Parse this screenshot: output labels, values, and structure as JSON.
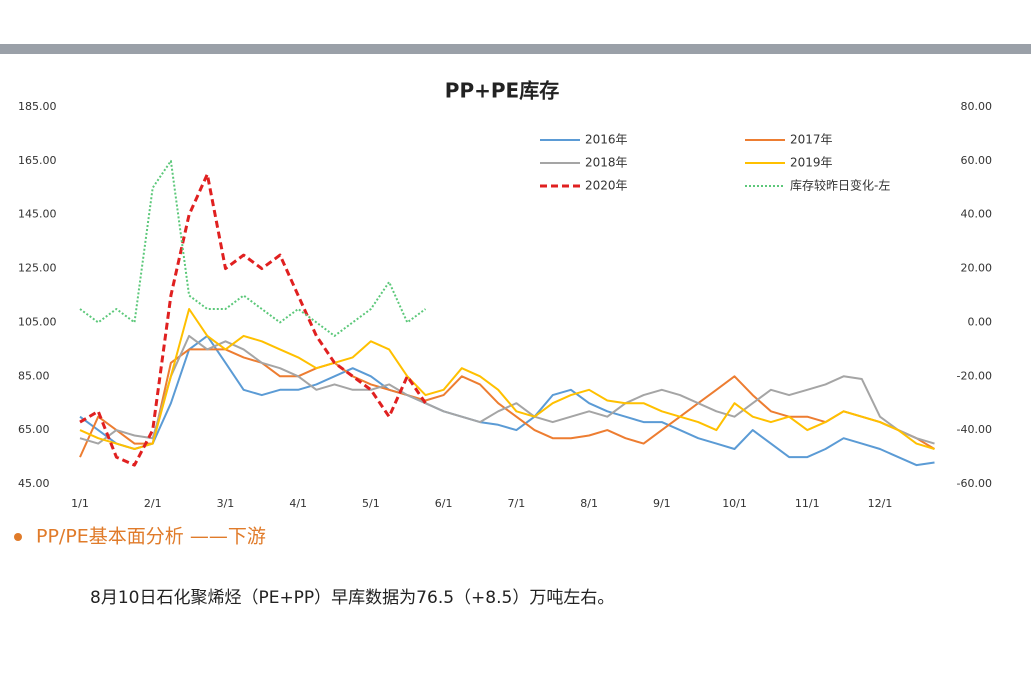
{
  "chart_data": {
    "type": "line",
    "title": "PP+PE库存",
    "categories": [
      "1/1",
      null,
      null,
      null,
      "2/1",
      null,
      null,
      null,
      "3/1",
      null,
      null,
      null,
      "4/1",
      null,
      null,
      null,
      "5/1",
      null,
      null,
      null,
      "6/1",
      null,
      null,
      null,
      "7/1",
      null,
      null,
      null,
      "8/1",
      null,
      null,
      null,
      "9/1",
      null,
      null,
      null,
      "10/1",
      null,
      null,
      null,
      "11/1",
      null,
      null,
      null,
      "12/1",
      null,
      null,
      null
    ],
    "ylim": [
      45,
      185
    ],
    "yticks": [
      {
        "value": 45,
        "label": "45.00"
      },
      {
        "value": 65,
        "label": "65.00"
      },
      {
        "value": 85,
        "label": "85.00"
      },
      {
        "value": 105,
        "label": "105.00"
      },
      {
        "value": 125,
        "label": "125.00"
      },
      {
        "value": 145,
        "label": "145.00"
      },
      {
        "value": 165,
        "label": "165.00"
      },
      {
        "value": 185,
        "label": "185.00"
      }
    ],
    "y2lim": [
      -60,
      80
    ],
    "y2ticks": [
      {
        "value": -60,
        "label": "-60.00"
      },
      {
        "value": -40,
        "label": "-40.00"
      },
      {
        "value": -20,
        "label": "-20.00"
      },
      {
        "value": 0,
        "label": "0.00"
      },
      {
        "value": 20,
        "label": "20.00"
      },
      {
        "value": 40,
        "label": "40.00"
      },
      {
        "value": 60,
        "label": "60.00"
      },
      {
        "value": 80,
        "label": "80.00"
      }
    ],
    "series": [
      {
        "name": "2016年",
        "color": "#5b9bd5",
        "style": "solid",
        "values": [
          70,
          65,
          60,
          58,
          60,
          75,
          95,
          100,
          90,
          80,
          78,
          80,
          80,
          82,
          85,
          88,
          85,
          80,
          78,
          75,
          72,
          70,
          68,
          67,
          65,
          70,
          78,
          80,
          75,
          72,
          70,
          68,
          68,
          65,
          62,
          60,
          58,
          65,
          60,
          55,
          55,
          58,
          62,
          60,
          58,
          55,
          52,
          53
        ]
      },
      {
        "name": "2017年",
        "color": "#ed7d31",
        "style": "solid",
        "values": [
          55,
          70,
          65,
          60,
          60,
          90,
          95,
          95,
          95,
          92,
          90,
          85,
          85,
          88,
          90,
          85,
          82,
          80,
          78,
          76,
          78,
          85,
          82,
          75,
          70,
          65,
          62,
          62,
          63,
          65,
          62,
          60,
          65,
          70,
          75,
          80,
          85,
          78,
          72,
          70,
          70,
          68,
          72,
          70,
          68,
          65,
          62,
          58
        ]
      },
      {
        "name": "2018年",
        "color": "#a5a5a5",
        "style": "solid",
        "values": [
          62,
          60,
          65,
          63,
          62,
          85,
          100,
          95,
          98,
          95,
          90,
          88,
          85,
          80,
          82,
          80,
          80,
          82,
          78,
          75,
          72,
          70,
          68,
          72,
          75,
          70,
          68,
          70,
          72,
          70,
          75,
          78,
          80,
          78,
          75,
          72,
          70,
          75,
          80,
          78,
          80,
          82,
          85,
          84,
          70,
          65,
          62,
          60
        ]
      },
      {
        "name": "2019年",
        "color": "#ffc000",
        "style": "solid",
        "values": [
          65,
          62,
          60,
          58,
          60,
          85,
          110,
          100,
          95,
          100,
          98,
          95,
          92,
          88,
          90,
          92,
          98,
          95,
          85,
          78,
          80,
          88,
          85,
          80,
          72,
          70,
          75,
          78,
          80,
          76,
          75,
          75,
          72,
          70,
          68,
          65,
          75,
          70,
          68,
          70,
          65,
          68,
          72,
          70,
          68,
          65,
          60,
          58
        ]
      },
      {
        "name": "2020年",
        "color": "#e02020",
        "style": "dashed",
        "values": [
          68,
          72,
          55,
          52,
          65,
          115,
          145,
          160,
          125,
          130,
          125,
          130,
          115,
          100,
          90,
          85,
          80,
          70,
          85,
          75,
          null,
          null,
          null,
          null,
          null,
          null,
          null,
          null,
          null,
          null,
          null,
          null,
          null,
          null,
          null,
          null,
          null,
          null,
          null,
          null,
          null,
          null,
          null,
          null,
          null,
          null,
          null,
          null
        ]
      },
      {
        "name": "库存较昨日变化-左",
        "color": "#5cc87a",
        "style": "dotted",
        "axis": "y2",
        "values": [
          5,
          0,
          5,
          0,
          50,
          60,
          10,
          5,
          5,
          10,
          5,
          0,
          5,
          0,
          -5,
          0,
          5,
          15,
          0,
          5,
          null,
          null,
          null,
          null,
          null,
          null,
          null,
          null,
          null,
          null,
          null,
          null,
          null,
          null,
          null,
          null,
          null,
          null,
          null,
          null,
          null,
          null,
          null,
          null,
          null,
          null,
          null,
          null
        ]
      }
    ]
  },
  "section_heading": "PP/PE基本面分析 ——下游",
  "paragraph": "8月10日石化聚烯烃（PE+PP）早库数据为76.5（+8.5）万吨左右。"
}
